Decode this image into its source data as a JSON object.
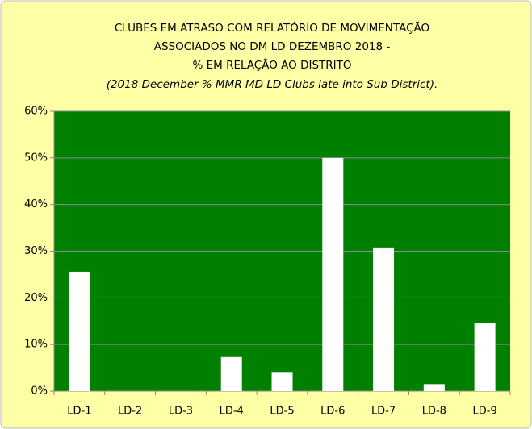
{
  "chart_data": {
    "type": "bar",
    "title": [
      "CLUBES  EM ATRASO  COM RELATÓRIO DE MOVIMENTAÇÃO",
      "ASSOCIADOS NO DM LD  DEZEMBRO  2018  -",
      "%  EM RELAÇÃO  AO DISTRITO",
      "(2018 December  % MMR  MD LD Clubs late into Sub District)."
    ],
    "categories": [
      "LD-1",
      "LD-2",
      "LD-3",
      "LD-4",
      "LD-5",
      "LD-6",
      "LD-7",
      "LD-8",
      "LD-9"
    ],
    "values": [
      25.6,
      0,
      0,
      7.3,
      4.1,
      50,
      30.8,
      1.5,
      14.6
    ],
    "color": "#ffffff",
    "ylim": [
      0,
      60
    ],
    "yticks": [
      {
        "value": 0,
        "label": "0%"
      },
      {
        "value": 10,
        "label": "10%"
      },
      {
        "value": 20,
        "label": "20%"
      },
      {
        "value": 30,
        "label": "30%"
      },
      {
        "value": 40,
        "label": "40%"
      },
      {
        "value": 50,
        "label": "50%"
      },
      {
        "value": 60,
        "label": "60%"
      }
    ],
    "grid": true
  }
}
